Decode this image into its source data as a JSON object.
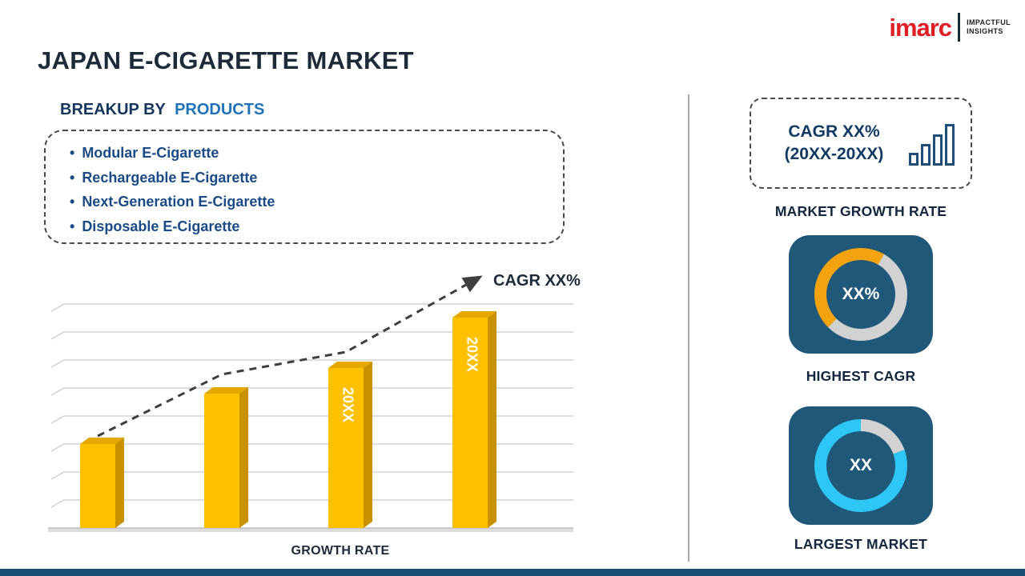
{
  "header": {
    "title": "JAPAN E-CIGARETTE MARKET",
    "logo": {
      "name": "imarc",
      "tagline1": "IMPACTFUL",
      "tagline2": "INSIGHTS"
    }
  },
  "breakup": {
    "heading_prefix": "BREAKUP BY",
    "heading_highlight": "PRODUCTS",
    "bullet": "•",
    "products": [
      "Modular E-Cigarette",
      "Rechargeable E-Cigarette",
      "Next-Generation E-Cigarette",
      "Disposable E-Cigarette"
    ]
  },
  "chart_data": {
    "type": "bar",
    "categories": [
      "",
      "",
      "20XX",
      "20XX"
    ],
    "values": [
      30,
      48,
      57,
      75
    ],
    "bar_labels": [
      "",
      "",
      "20XX",
      "20XX"
    ],
    "xlabel": "GROWTH RATE",
    "trend_label": "CAGR XX%",
    "ylim": [
      0,
      80
    ],
    "grid": true,
    "legend": "none",
    "bar_color": "#FFC000",
    "bar_top_color": "#E5A800",
    "bar_side_color": "#C79100",
    "trend_color": "#3f3f3f"
  },
  "sidebar": {
    "cagr_box": {
      "line1": "CAGR XX%",
      "line2": "(20XX-20XX)",
      "icon": "bar-chart-icon",
      "icon_bar_heights": [
        16,
        27,
        39,
        52
      ]
    },
    "market_growth_label": "MARKET GROWTH RATE",
    "highest_cagr": {
      "value": "XX%",
      "label": "HIGHEST CAGR",
      "arc_color": "#F2A30F",
      "arc_start_deg": 225,
      "arc_sweep_deg": 165,
      "ring_base_color": "#D2D2D2"
    },
    "largest_market": {
      "value": "XX",
      "label": "LARGEST MARKET",
      "arc_color": "#2EC6F5",
      "arc_start_deg": 70,
      "arc_sweep_deg": 290,
      "ring_base_color": "#D2D2D2"
    }
  },
  "colors": {
    "accent_yellow": "#FFC000",
    "accent_cyan": "#2EC6F5",
    "accent_orange": "#F2A30F",
    "brand_red": "#E01E26",
    "dark_navy": "#17365D",
    "link_blue": "#2173B8",
    "card_blue": "#20587A",
    "footer_navy": "#1B4E73"
  }
}
